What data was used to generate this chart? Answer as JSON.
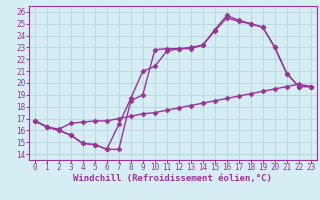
{
  "xlabel": "Windchill (Refroidissement éolien,°C)",
  "ylabel": "",
  "xlim": [
    -0.5,
    23.5
  ],
  "ylim": [
    13.5,
    26.5
  ],
  "xticks": [
    0,
    1,
    2,
    3,
    4,
    5,
    6,
    7,
    8,
    9,
    10,
    11,
    12,
    13,
    14,
    15,
    16,
    17,
    18,
    19,
    20,
    21,
    22,
    23
  ],
  "yticks": [
    14,
    15,
    16,
    17,
    18,
    19,
    20,
    21,
    22,
    23,
    24,
    25,
    26
  ],
  "bg_color": "#d4eef4",
  "grid_color": "#b0cfd8",
  "line_color": "#993399",
  "line1_x": [
    0,
    1,
    2,
    3,
    4,
    5,
    6,
    7,
    8,
    9,
    10,
    11,
    12,
    13,
    14,
    15,
    16,
    17,
    18,
    19,
    20,
    21,
    22,
    23
  ],
  "line1_y": [
    16.8,
    16.3,
    16.0,
    15.6,
    14.9,
    14.8,
    14.4,
    14.4,
    18.5,
    19.0,
    22.8,
    22.9,
    22.9,
    23.0,
    23.2,
    24.4,
    25.5,
    25.2,
    25.0,
    24.7,
    23.0,
    20.8,
    19.7,
    19.7
  ],
  "line2_x": [
    0,
    1,
    2,
    3,
    4,
    5,
    6,
    7,
    8,
    9,
    10,
    11,
    12,
    13,
    14,
    15,
    16,
    17,
    18,
    19,
    20,
    21,
    22,
    23
  ],
  "line2_y": [
    16.8,
    16.3,
    16.0,
    15.6,
    14.9,
    14.8,
    14.4,
    16.5,
    18.7,
    21.0,
    21.4,
    22.7,
    22.9,
    22.9,
    23.2,
    24.5,
    25.7,
    25.3,
    25.0,
    24.7,
    23.0,
    20.8,
    19.7,
    19.7
  ],
  "line3_x": [
    0,
    1,
    2,
    3,
    4,
    5,
    6,
    7,
    8,
    9,
    10,
    11,
    12,
    13,
    14,
    15,
    16,
    17,
    18,
    19,
    20,
    21,
    22,
    23
  ],
  "line3_y": [
    16.8,
    16.3,
    16.1,
    16.6,
    16.7,
    16.8,
    16.8,
    17.0,
    17.2,
    17.4,
    17.5,
    17.7,
    17.9,
    18.1,
    18.3,
    18.5,
    18.7,
    18.9,
    19.1,
    19.3,
    19.5,
    19.7,
    19.9,
    19.7
  ],
  "marker": "D",
  "markersize": 2.5,
  "linewidth": 1.0,
  "tick_fontsize": 5.5,
  "xlabel_fontsize": 6.5,
  "tick_color": "#993399",
  "xlabel_color": "#993399",
  "spine_color": "#993399"
}
